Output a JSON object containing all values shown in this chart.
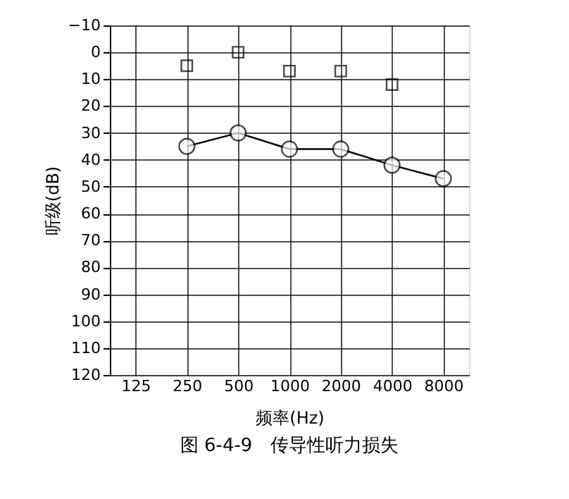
{
  "chart_data": {
    "type": "line",
    "xlabel": "频率(Hz)",
    "ylabel": "听级(dB)",
    "categories": [
      "125",
      "250",
      "500",
      "1000",
      "2000",
      "4000",
      "8000"
    ],
    "series": [
      {
        "color": "#000000",
        "marker": "circle",
        "values": [
          null,
          35,
          30,
          36,
          36,
          42,
          47
        ]
      },
      {
        "type": "scatter",
        "color": "#000000",
        "marker": "square",
        "values": [
          null,
          5,
          0,
          7,
          7,
          12,
          null
        ]
      }
    ],
    "ylim": [
      120,
      -10
    ],
    "yticks": [
      -10,
      0,
      10,
      20,
      30,
      40,
      50,
      60,
      70,
      80,
      90,
      100,
      110,
      120
    ],
    "grid": true,
    "annotations": [
      "图 6-4-9　传导性听力损失"
    ]
  }
}
